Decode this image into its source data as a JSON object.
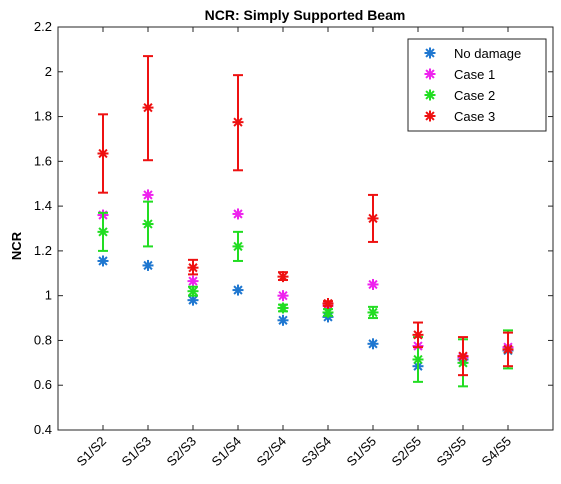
{
  "chart_data": {
    "type": "scatter",
    "title": "NCR: Simply Supported Beam",
    "xlabel": "",
    "ylabel": "NCR",
    "ylim": [
      0.4,
      2.2
    ],
    "yticks": [
      "0.4",
      "0.6",
      "0.8",
      "1",
      "1.2",
      "1.4",
      "1.6",
      "1.8",
      "2",
      "2.2"
    ],
    "xlim": [
      0,
      11
    ],
    "categories": [
      "S1/S2",
      "S1/S3",
      "S2/S3",
      "S1/S4",
      "S2/S4",
      "S3/S4",
      "S1/S5",
      "S2/S5",
      "S3/S5",
      "S4/S5"
    ],
    "legend_position": "top-right",
    "grid": false,
    "series": [
      {
        "name": "No damage",
        "color": "#1f77d0",
        "values": [
          1.155,
          1.135,
          0.98,
          1.025,
          0.89,
          0.905,
          0.785,
          0.685,
          0.715,
          0.755
        ],
        "error_low": [],
        "error_high": []
      },
      {
        "name": "Case 1",
        "color": "#ee22ee",
        "values": [
          1.36,
          1.45,
          1.065,
          1.365,
          1.0,
          0.955,
          1.05,
          0.775,
          0.725,
          0.77
        ],
        "error_low": [],
        "error_high": []
      },
      {
        "name": "Case 2",
        "color": "#22dd22",
        "values": [
          1.285,
          1.32,
          1.02,
          1.22,
          0.945,
          0.925,
          0.925,
          0.715,
          0.7,
          0.76
        ],
        "error_low": [
          1.2,
          1.22,
          1.0,
          1.155,
          0.93,
          0.91,
          0.9,
          0.615,
          0.595,
          0.675
        ],
        "error_high": [
          1.37,
          1.42,
          1.04,
          1.285,
          0.96,
          0.94,
          0.95,
          0.815,
          0.805,
          0.845
        ]
      },
      {
        "name": "Case 3",
        "color": "#ee1111",
        "values": [
          1.635,
          1.84,
          1.125,
          1.775,
          1.085,
          0.965,
          1.345,
          0.825,
          0.73,
          0.76
        ],
        "error_low": [
          1.46,
          1.605,
          1.095,
          1.56,
          1.07,
          0.955,
          1.24,
          0.77,
          0.645,
          0.685
        ],
        "error_high": [
          1.81,
          2.07,
          1.16,
          1.985,
          1.105,
          0.975,
          1.45,
          0.88,
          0.815,
          0.835
        ]
      }
    ]
  }
}
